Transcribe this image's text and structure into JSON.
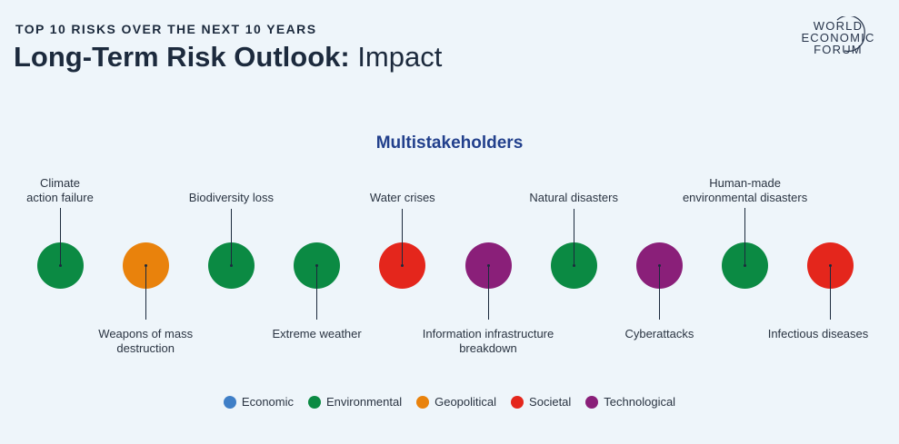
{
  "header": {
    "eyebrow": "TOP 10 RISKS OVER THE NEXT 10 YEARS",
    "title_bold": "Long-Term Risk Outlook:",
    "title_light": " Impact"
  },
  "logo": {
    "lines": [
      "WORLD",
      "ECONOMIC",
      "FORUM"
    ]
  },
  "subtitle": "Multistakeholders",
  "colors": {
    "Economic": "#3f7fc7",
    "Environmental": "#0b8a43",
    "Geopolitical": "#e9820c",
    "Societal": "#e4261c",
    "Technological": "#8a1f79"
  },
  "risks": [
    {
      "rank": 1,
      "label": [
        "Climate",
        "action failure"
      ],
      "category": "Environmental",
      "label_position": "above"
    },
    {
      "rank": 2,
      "label": [
        "Weapons of mass",
        "destruction"
      ],
      "category": "Geopolitical",
      "label_position": "below"
    },
    {
      "rank": 3,
      "label": [
        "Biodiversity loss"
      ],
      "category": "Environmental",
      "label_position": "above"
    },
    {
      "rank": 4,
      "label": [
        "Extreme weather"
      ],
      "category": "Environmental",
      "label_position": "below"
    },
    {
      "rank": 5,
      "label": [
        "Water crises"
      ],
      "category": "Societal",
      "label_position": "above"
    },
    {
      "rank": 6,
      "label": [
        "Information infrastructure",
        "breakdown"
      ],
      "category": "Technological",
      "label_position": "below"
    },
    {
      "rank": 7,
      "label": [
        "Natural disasters"
      ],
      "category": "Environmental",
      "label_position": "above"
    },
    {
      "rank": 8,
      "label": [
        "Cyberattacks"
      ],
      "category": "Technological",
      "label_position": "below"
    },
    {
      "rank": 9,
      "label": [
        "Human-made",
        "environmental disasters"
      ],
      "category": "Environmental",
      "label_position": "above"
    },
    {
      "rank": 10,
      "label": [
        "Infectious diseases"
      ],
      "category": "Societal",
      "label_position": "below"
    }
  ],
  "legend": [
    "Economic",
    "Environmental",
    "Geopolitical",
    "Societal",
    "Technological"
  ]
}
